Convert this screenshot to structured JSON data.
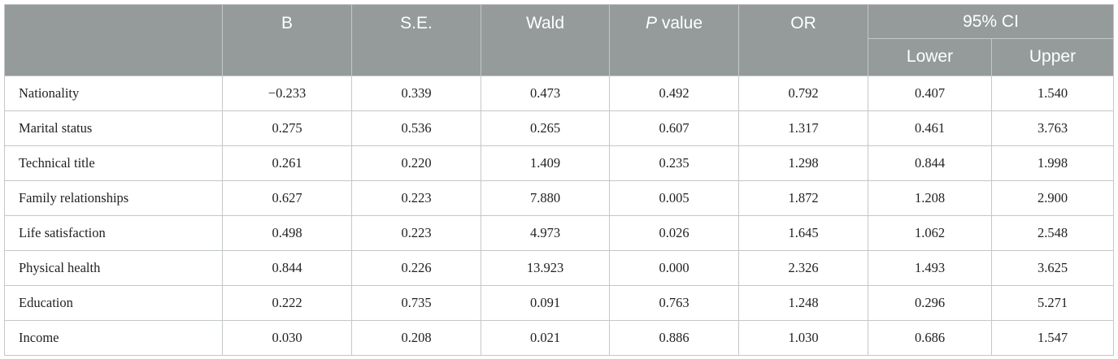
{
  "table": {
    "headers": {
      "stub": "",
      "b": "B",
      "se": "S.E.",
      "wald": "Wald",
      "p_italic": "P",
      "p_rest": " value",
      "or": "OR",
      "ci": "95% CI",
      "lower": "Lower",
      "upper": "Upper"
    },
    "rows": [
      {
        "label": "Nationality",
        "b": "−0.233",
        "se": "0.339",
        "wald": "0.473",
        "p": "0.492",
        "or": "0.792",
        "lower": "0.407",
        "upper": "1.540"
      },
      {
        "label": "Marital status",
        "b": "0.275",
        "se": "0.536",
        "wald": "0.265",
        "p": "0.607",
        "or": "1.317",
        "lower": "0.461",
        "upper": "3.763"
      },
      {
        "label": "Technical title",
        "b": "0.261",
        "se": "0.220",
        "wald": "1.409",
        "p": "0.235",
        "or": "1.298",
        "lower": "0.844",
        "upper": "1.998"
      },
      {
        "label": "Family relationships",
        "b": "0.627",
        "se": "0.223",
        "wald": "7.880",
        "p": "0.005",
        "or": "1.872",
        "lower": "1.208",
        "upper": "2.900"
      },
      {
        "label": "Life satisfaction",
        "b": "0.498",
        "se": "0.223",
        "wald": "4.973",
        "p": "0.026",
        "or": "1.645",
        "lower": "1.062",
        "upper": "2.548"
      },
      {
        "label": "Physical health",
        "b": "0.844",
        "se": "0.226",
        "wald": "13.923",
        "p": "0.000",
        "or": "2.326",
        "lower": "1.493",
        "upper": "3.625"
      },
      {
        "label": "Education",
        "b": "0.222",
        "se": "0.735",
        "wald": "0.091",
        "p": "0.763",
        "or": "1.248",
        "lower": "0.296",
        "upper": "5.271"
      },
      {
        "label": "Income",
        "b": "0.030",
        "se": "0.208",
        "wald": "0.021",
        "p": "0.886",
        "or": "1.030",
        "lower": "0.686",
        "upper": "1.547"
      }
    ]
  }
}
